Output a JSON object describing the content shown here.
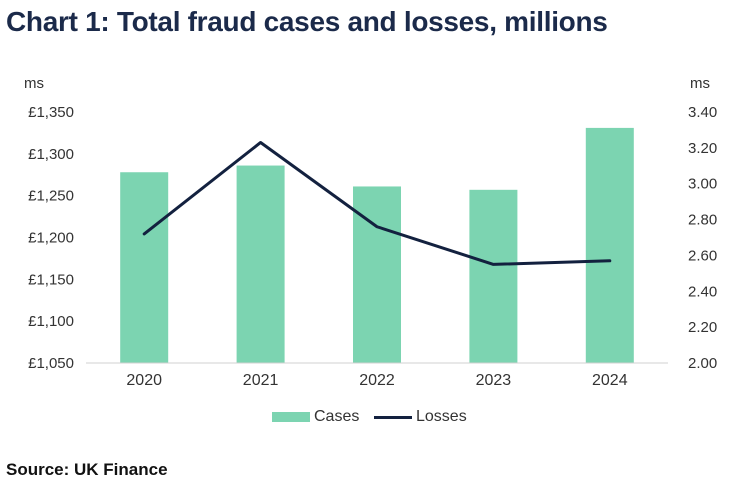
{
  "title": "Chart 1: Total fraud cases and losses, millions",
  "source": "Source: UK Finance",
  "colors": {
    "bar": "#7cd4b1",
    "line": "#13213f",
    "title": "#1b2a4a"
  },
  "chart_data": {
    "type": "bar",
    "title": "Chart 1: Total fraud cases and losses, millions",
    "categories": [
      "2020",
      "2021",
      "2022",
      "2023",
      "2024"
    ],
    "left_axis": {
      "unit_label": "ms",
      "range": [
        1050,
        1350
      ],
      "ticks": [
        1050,
        1100,
        1150,
        1200,
        1250,
        1300,
        1350
      ],
      "tick_labels": [
        "£1,050",
        "£1,100",
        "£1,150",
        "£1,200",
        "£1,250",
        "£1,300",
        "£1,350"
      ]
    },
    "right_axis": {
      "unit_label": "ms",
      "range": [
        2.0,
        3.4
      ],
      "ticks": [
        2.0,
        2.2,
        2.4,
        2.6,
        2.8,
        3.0,
        3.2,
        3.4
      ],
      "tick_labels": [
        "2.00",
        "2.20",
        "2.40",
        "2.60",
        "2.80",
        "3.00",
        "3.20",
        "3.40"
      ]
    },
    "series": [
      {
        "name": "Cases",
        "type": "bar",
        "axis": "left",
        "values": [
          1278,
          1286,
          1261,
          1257,
          1331
        ]
      },
      {
        "name": "Losses",
        "type": "line",
        "axis": "right",
        "values": [
          2.72,
          3.23,
          2.76,
          2.55,
          2.57
        ]
      }
    ],
    "legend": "bottom",
    "grid": false
  }
}
